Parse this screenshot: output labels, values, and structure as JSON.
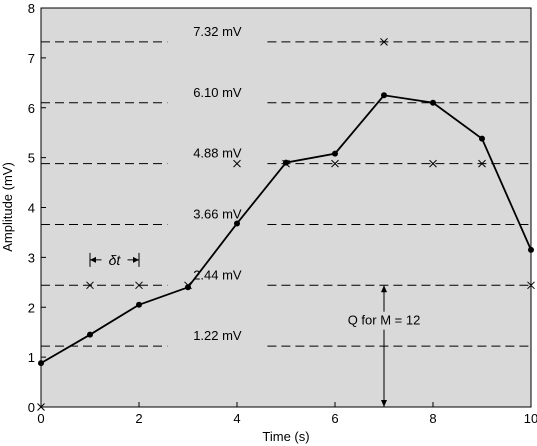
{
  "chart_data": {
    "type": "line",
    "xlabel": "Time (s)",
    "ylabel": "Amplitude (mV)",
    "xlim": [
      0,
      10
    ],
    "ylim": [
      0,
      8
    ],
    "xticks": [
      0,
      2,
      4,
      6,
      8,
      10
    ],
    "yticks": [
      0,
      1,
      2,
      3,
      4,
      5,
      6,
      7,
      8
    ],
    "series": [
      {
        "values_x": [
          0,
          1,
          2,
          3,
          4,
          5,
          6,
          7,
          8,
          9,
          10
        ],
        "values_y": [
          0.88,
          1.45,
          2.05,
          2.4,
          3.68,
          4.9,
          5.08,
          6.25,
          6.1,
          5.38,
          3.15
        ],
        "color": "#000000"
      }
    ],
    "quantization_levels": [
      {
        "value": 1.22,
        "label": "1.22 mV"
      },
      {
        "value": 2.44,
        "label": "2.44 mV"
      },
      {
        "value": 3.66,
        "label": "3.66 mV"
      },
      {
        "value": 4.88,
        "label": "4.88 mV"
      },
      {
        "value": 6.1,
        "label": "6.10 mV"
      },
      {
        "value": 7.32,
        "label": "7.32 mV"
      }
    ],
    "sample_markers": [
      {
        "x": 0,
        "y": 0
      },
      {
        "x": 1,
        "y": 2.44
      },
      {
        "x": 2,
        "y": 2.44
      },
      {
        "x": 3,
        "y": 2.44
      },
      {
        "x": 4,
        "y": 4.88
      },
      {
        "x": 5,
        "y": 4.88
      },
      {
        "x": 6,
        "y": 4.88
      },
      {
        "x": 7,
        "y": 7.32
      },
      {
        "x": 8,
        "y": 4.88
      },
      {
        "x": 9,
        "y": 4.88
      },
      {
        "x": 10,
        "y": 2.44
      }
    ],
    "annotations": {
      "delta_t": {
        "label": "δt",
        "x_from": 1,
        "x_to": 2,
        "y": 2.95
      },
      "q_arrow": {
        "label": "Q for M = 12",
        "x": 7,
        "y_from": 0,
        "y_to": 2.44
      }
    },
    "plot_background": "#d9d9d9",
    "grid": false
  }
}
